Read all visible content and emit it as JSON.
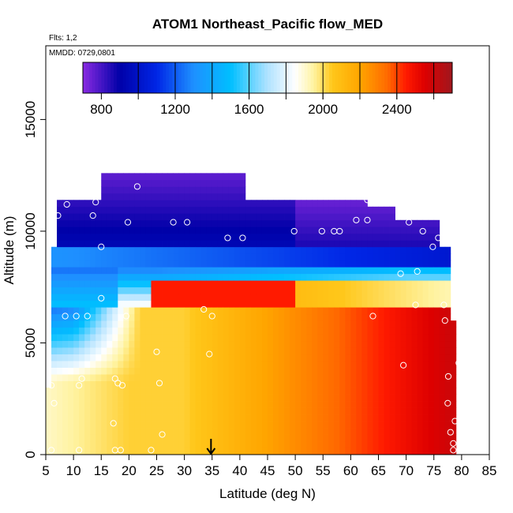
{
  "chart_data": {
    "type": "heatmap",
    "title": "ATOM1 Northeast_Pacific flow_MED",
    "flights_label": "Flts: 1,2",
    "dates_label": "MMDD: 0729,0801",
    "xlabel": "Latitude (deg N)",
    "ylabel": "Altitude (m)",
    "xlim": [
      5,
      85
    ],
    "ylim": [
      0,
      18300
    ],
    "x_ticks": [
      5,
      10,
      15,
      20,
      25,
      30,
      35,
      40,
      45,
      50,
      55,
      60,
      65,
      70,
      75,
      80,
      85
    ],
    "y_ticks": [
      0,
      5000,
      10000,
      15000
    ],
    "colorbar": {
      "range": [
        700,
        2700
      ],
      "tick_values": [
        800,
        1200,
        1600,
        2000,
        2400
      ],
      "tick_labels": [
        "800",
        "1200",
        "1600",
        "2000",
        "2400"
      ],
      "divider_values": [
        1000,
        1200,
        1400,
        1600,
        1800,
        2000,
        2200,
        2400,
        2600
      ],
      "stops": [
        {
          "v": 700,
          "c": "#8a2be2"
        },
        {
          "v": 900,
          "c": "#0000a8"
        },
        {
          "v": 1100,
          "c": "#0026e6"
        },
        {
          "v": 1300,
          "c": "#1e90ff"
        },
        {
          "v": 1500,
          "c": "#00bfff"
        },
        {
          "v": 1700,
          "c": "#b0e2ff"
        },
        {
          "v": 1850,
          "c": "#ffffff"
        },
        {
          "v": 1950,
          "c": "#fff3a0"
        },
        {
          "v": 2050,
          "c": "#ffc71a"
        },
        {
          "v": 2200,
          "c": "#ffa500"
        },
        {
          "v": 2350,
          "c": "#ff6a00"
        },
        {
          "v": 2450,
          "c": "#ff1a00"
        },
        {
          "v": 2550,
          "c": "#dd0000"
        },
        {
          "v": 2700,
          "c": "#a0171e"
        }
      ]
    },
    "arrow_latitude": 34.8,
    "heatmap_layers": [
      {
        "lat": [
          21.3,
          22.0
        ],
        "alt": [
          11800,
          12500
        ],
        "value": 780
      },
      {
        "lat": [
          6.5,
          79.0
        ],
        "alt": [
          0,
          6700
        ],
        "value": 2050
      },
      {
        "lat": [
          6.5,
          79.0
        ],
        "alt": [
          6700,
          9200
        ],
        "value": 1200
      },
      {
        "lat": [
          6.5,
          73.0
        ],
        "alt": [
          9200,
          11900
        ],
        "value": 900
      }
    ],
    "series": [
      {
        "points": [
          [
            6.0,
            200
          ],
          [
            6.5,
            2300
          ],
          [
            6.0,
            3100
          ],
          [
            11.0,
            3100
          ],
          [
            11.5,
            3400
          ],
          [
            8.5,
            6200
          ],
          [
            10.5,
            6200
          ],
          [
            12.5,
            6200
          ],
          [
            15.0,
            7000
          ],
          [
            19.5,
            6200
          ],
          [
            7.2,
            10700
          ],
          [
            8.8,
            11200
          ],
          [
            13.5,
            10700
          ],
          [
            14.0,
            11300
          ],
          [
            15.0,
            9300
          ],
          [
            17.2,
            1400
          ],
          [
            17.5,
            3400
          ],
          [
            18.0,
            3200
          ],
          [
            18.8,
            3100
          ],
          [
            17.5,
            200
          ],
          [
            18.5,
            200
          ],
          [
            11.0,
            200
          ],
          [
            21.5,
            12000
          ],
          [
            19.8,
            10400
          ],
          [
            25.5,
            3200
          ],
          [
            25.0,
            4600
          ],
          [
            26.0,
            900
          ],
          [
            24.0,
            200
          ],
          [
            28.0,
            10400
          ],
          [
            30.5,
            10400
          ],
          [
            33.5,
            6500
          ],
          [
            34.5,
            4500
          ],
          [
            35.0,
            6200
          ],
          [
            37.8,
            9700
          ],
          [
            40.5,
            9700
          ],
          [
            49.8,
            10000
          ],
          [
            54.8,
            10000
          ],
          [
            57.0,
            10000
          ],
          [
            58.0,
            10000
          ],
          [
            61.0,
            10500
          ],
          [
            63.0,
            10500
          ],
          [
            63.0,
            11400
          ],
          [
            64.0,
            6200
          ],
          [
            69.0,
            8100
          ],
          [
            70.5,
            10400
          ],
          [
            69.5,
            4000
          ],
          [
            72.0,
            8200
          ],
          [
            71.7,
            6700
          ],
          [
            73.0,
            10000
          ],
          [
            74.8,
            9300
          ],
          [
            75.8,
            9700
          ],
          [
            76.8,
            6700
          ],
          [
            77.0,
            6000
          ],
          [
            77.6,
            3500
          ],
          [
            77.5,
            2300
          ],
          [
            78.0,
            1000
          ],
          [
            78.5,
            500
          ],
          [
            78.5,
            200
          ],
          [
            78.8,
            1500
          ],
          [
            79.5,
            4100
          ]
        ]
      }
    ]
  }
}
